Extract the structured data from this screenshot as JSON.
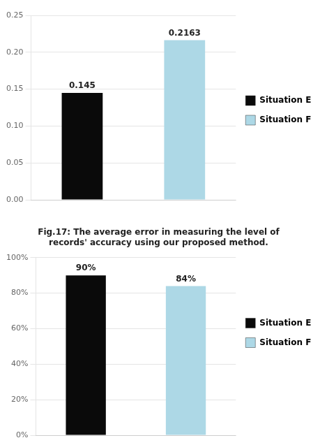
{
  "chart_data": [
    {
      "type": "bar",
      "categories": [
        "Situation E",
        "Situation F"
      ],
      "values": [
        0.145,
        0.2163
      ],
      "colors": [
        "#0a0a0a",
        "#add8e6"
      ],
      "ylim": [
        0,
        0.25
      ],
      "yticks": [
        {
          "value": 0,
          "label": "0.00"
        },
        0.05,
        {
          "value": 0.1,
          "label": "0.10"
        },
        0.15,
        {
          "value": 0.2,
          "label": "0.20"
        },
        0.25
      ],
      "grid": true,
      "legend": "right",
      "data_labels": true,
      "tick_labels": "y"
    },
    {
      "type": "bar",
      "title": "Fig.17: The average error in measuring the level of\nrecords' accuracy using our proposed method.",
      "categories": [
        "Situation E",
        "Situation F"
      ],
      "values": [
        0.9,
        0.84
      ],
      "value_labels": [
        "90%",
        "84%"
      ],
      "colors": [
        "#0a0a0a",
        "#add8e6"
      ],
      "ylim": [
        0,
        1.0
      ],
      "yticks": [
        {
          "value": 0,
          "label": "0%"
        },
        {
          "value": 0.2,
          "label": "20%"
        },
        {
          "value": 0.4,
          "label": "40%"
        },
        {
          "value": 0.6,
          "label": "60%"
        },
        {
          "value": 0.8,
          "label": "80%"
        },
        {
          "value": 1.0,
          "label": "100%"
        }
      ],
      "grid": true,
      "legend": "right",
      "data_labels": true,
      "tick_labels": "y"
    }
  ]
}
